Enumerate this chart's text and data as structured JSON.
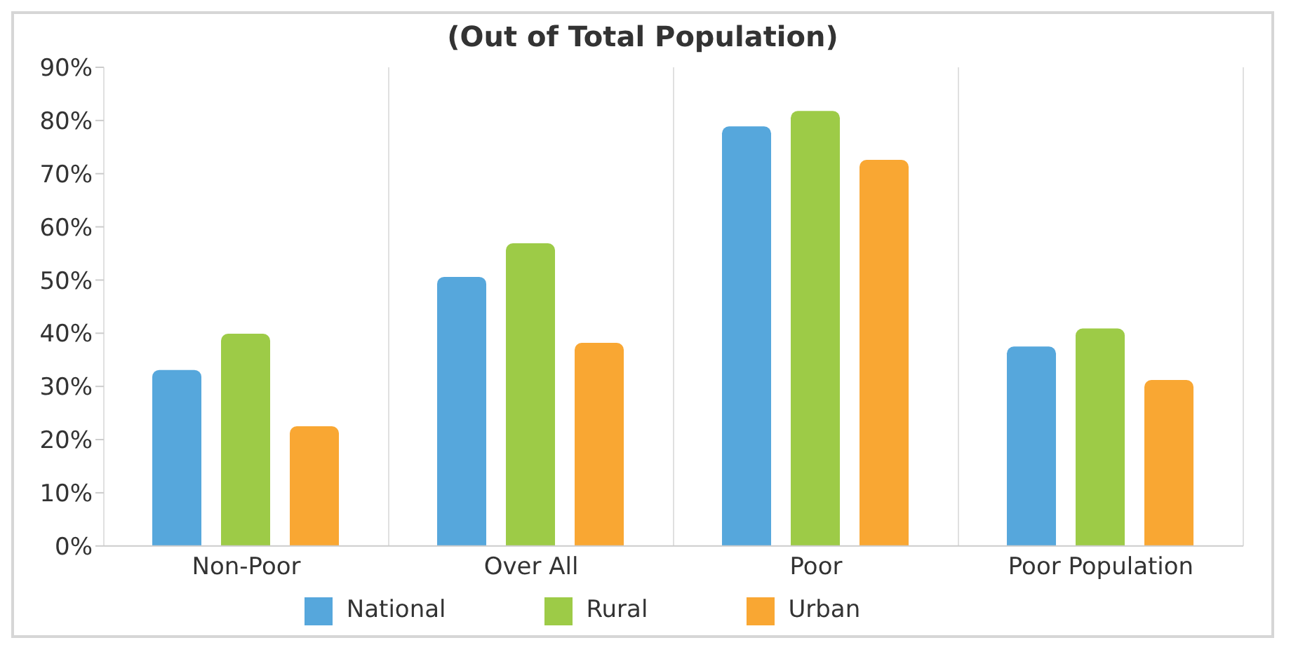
{
  "chart_data": {
    "type": "bar",
    "title": "(Out of Total Population)",
    "categories": [
      "Non-Poor",
      "Over All",
      "Poor",
      "Poor Population"
    ],
    "series": [
      {
        "name": "National",
        "color": "#56a7dc",
        "values": [
          33.1,
          50.6,
          78.9,
          37.5
        ]
      },
      {
        "name": "Rural",
        "color": "#9dcb47",
        "values": [
          39.9,
          56.9,
          81.8,
          40.9
        ]
      },
      {
        "name": "Urban",
        "color": "#f9a733",
        "values": [
          22.5,
          38.2,
          72.6,
          31.2
        ]
      }
    ],
    "ylim": [
      0,
      90
    ],
    "yticks": [
      {
        "value": 0,
        "label": "0%"
      },
      {
        "value": 10,
        "label": "10%"
      },
      {
        "value": 20,
        "label": "20%"
      },
      {
        "value": 30,
        "label": "30%"
      },
      {
        "value": 40,
        "label": "40%"
      },
      {
        "value": 50,
        "label": "50%"
      },
      {
        "value": 60,
        "label": "60%"
      },
      {
        "value": 70,
        "label": "70%"
      },
      {
        "value": 80,
        "label": "80%"
      },
      {
        "value": 90,
        "label": "90%"
      }
    ],
    "grid": "x",
    "legend": "bottom"
  }
}
